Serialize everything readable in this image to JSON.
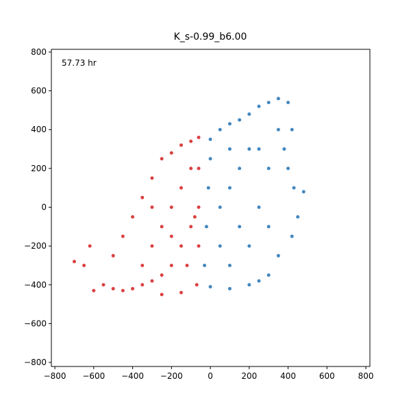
{
  "chart_data": {
    "type": "scatter",
    "title": "K_s-0.99_b6.00",
    "annotation": "57.73 hr",
    "xlim": [
      -818,
      821
    ],
    "ylim": [
      -821,
      814
    ],
    "xticks": [
      {
        "value": -800,
        "label": "−800"
      },
      {
        "value": -600,
        "label": "−600"
      },
      {
        "value": -400,
        "label": "−400"
      },
      {
        "value": -200,
        "label": "−200"
      },
      0,
      200,
      400,
      600,
      800
    ],
    "yticks": [
      {
        "value": -800,
        "label": "−800"
      },
      {
        "value": -600,
        "label": "−600"
      },
      {
        "value": -400,
        "label": "−400"
      },
      {
        "value": -200,
        "label": "−200"
      },
      0,
      200,
      400,
      600,
      800
    ],
    "grid": false,
    "series": [
      {
        "color": "#d42020",
        "x": [
          -100,
          -150,
          -200,
          -250,
          -300,
          -350,
          -400,
          -450,
          -500,
          -550,
          -600,
          -650,
          -700,
          -620,
          -500,
          -450,
          -400,
          -350,
          -300,
          -250,
          -200,
          -150,
          -100,
          -60,
          -60,
          -60,
          -60,
          -70,
          -150,
          -250,
          -200,
          -150,
          -300,
          -250,
          -100,
          -350,
          -200,
          -120,
          -80,
          -300
        ],
        "values": [
          -100,
          -200,
          -300,
          -350,
          -380,
          -400,
          -420,
          -430,
          -420,
          -400,
          -430,
          -300,
          -280,
          -200,
          -250,
          -150,
          -50,
          50,
          150,
          250,
          280,
          320,
          340,
          360,
          200,
          0,
          -200,
          -400,
          -440,
          -450,
          0,
          100,
          -200,
          -100,
          200,
          -300,
          -150,
          -300,
          -50,
          0
        ]
      },
      {
        "color": "#2272b4",
        "x": [
          0,
          50,
          100,
          150,
          200,
          250,
          300,
          350,
          400,
          420,
          380,
          400,
          430,
          450,
          420,
          350,
          300,
          250,
          200,
          100,
          0,
          -30,
          -20,
          -10,
          0,
          100,
          200,
          300,
          250,
          150,
          100,
          50,
          200,
          300,
          150,
          50,
          480,
          350,
          100,
          250
        ],
        "values": [
          350,
          400,
          430,
          450,
          480,
          520,
          540,
          560,
          540,
          400,
          300,
          200,
          100,
          -50,
          -150,
          -250,
          -350,
          -380,
          -400,
          -420,
          -410,
          -300,
          -100,
          100,
          250,
          300,
          300,
          200,
          0,
          -100,
          100,
          -200,
          -200,
          -100,
          200,
          0,
          80,
          400,
          -300,
          300
        ]
      }
    ]
  }
}
